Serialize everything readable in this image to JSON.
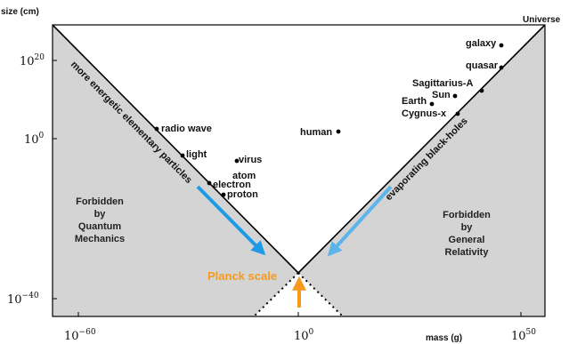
{
  "axes": {
    "y_title": "size (cm)",
    "x_title": "mass (g)",
    "y_ticks": [
      {
        "base": "10",
        "exp": "20"
      },
      {
        "base": "10",
        "exp": "0"
      },
      {
        "base": "10",
        "exp": "−40"
      }
    ],
    "x_ticks": [
      {
        "base": "10",
        "exp": "−60"
      },
      {
        "base": "10",
        "exp": "0"
      },
      {
        "base": "10",
        "exp": "50"
      }
    ]
  },
  "regions": {
    "quantum": [
      "Forbidden",
      "by",
      "Quantum",
      "Mechanics"
    ],
    "relativity": [
      "Forbidden",
      "by",
      "General",
      "Relativity"
    ]
  },
  "lines": {
    "left_label": "more energetic elementary particles",
    "right_label": "evaporating black-holes",
    "corner_label": "Universe"
  },
  "planck_label": "Planck scale",
  "objects": {
    "radio_wave": "radio wave",
    "light": "light",
    "virus": "virus",
    "atom": "atom",
    "electron": "electron",
    "proton": "proton",
    "human": "human",
    "galaxy": "galaxy",
    "quasar": "quasar",
    "sagittarius": "Sagittarius-A",
    "sun": "Sun",
    "earth": "Earth",
    "cygnus": "Cygnus-x"
  },
  "colors": {
    "forbidden_fill": "#d4d4d4",
    "arrow_blue": "#1f9be6",
    "arrow_lightblue": "#5db4ea",
    "planck_orange": "#f59a1e"
  }
}
